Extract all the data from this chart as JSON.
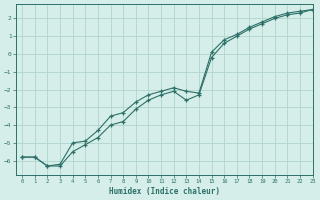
{
  "xlabel": "Humidex (Indice chaleur)",
  "ylabel": "",
  "xlim": [
    -0.5,
    23
  ],
  "ylim": [
    -6.8,
    2.8
  ],
  "yticks": [
    2,
    1,
    0,
    -1,
    -2,
    -3,
    -4,
    -5,
    -6
  ],
  "xticks": [
    0,
    1,
    2,
    3,
    4,
    5,
    6,
    7,
    8,
    9,
    10,
    11,
    12,
    13,
    14,
    15,
    16,
    17,
    18,
    19,
    20,
    21,
    22,
    23
  ],
  "background_color": "#d5eee9",
  "grid_color": "#b0d4cc",
  "line_color": "#2d7068",
  "line1_x": [
    0,
    1,
    2,
    3,
    4,
    5,
    6,
    7,
    8,
    9,
    10,
    11,
    12,
    13,
    14,
    15,
    16,
    17,
    18,
    19,
    20,
    21,
    22,
    23
  ],
  "line1_y": [
    -5.8,
    -5.8,
    -6.3,
    -6.3,
    -5.5,
    -5.1,
    -4.7,
    -4.0,
    -3.8,
    -3.1,
    -2.6,
    -2.3,
    -2.1,
    -2.6,
    -2.3,
    -0.2,
    0.6,
    1.0,
    1.4,
    1.7,
    2.0,
    2.2,
    2.3,
    2.5
  ],
  "line2_x": [
    0,
    1,
    2,
    3,
    4,
    5,
    6,
    7,
    8,
    9,
    10,
    11,
    12,
    13,
    14,
    15,
    16,
    17,
    18,
    19,
    20,
    21,
    22,
    23
  ],
  "line2_y": [
    -5.8,
    -5.8,
    -6.3,
    -6.2,
    -5.0,
    -4.9,
    -4.3,
    -3.5,
    -3.3,
    -2.7,
    -2.3,
    -2.1,
    -1.9,
    -2.1,
    -2.2,
    0.1,
    0.8,
    1.1,
    1.5,
    1.8,
    2.1,
    2.3,
    2.4,
    2.5
  ]
}
